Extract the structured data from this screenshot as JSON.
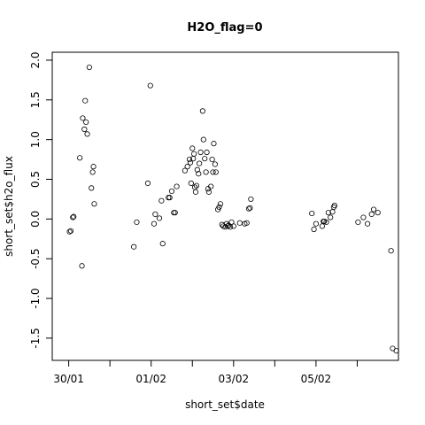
{
  "chart_data": {
    "type": "scatter",
    "title": "H2O_flag=0",
    "xlabel": "short_set$date",
    "ylabel": "short_set$h2o_flux",
    "x_ticks": [
      {
        "label": "30/01",
        "day": 30
      },
      {
        "label": "01/02",
        "day": 32
      },
      {
        "label": "03/02",
        "day": 34
      },
      {
        "label": "05/02",
        "day": 36
      }
    ],
    "x_minor_ticks": [
      31,
      33,
      35,
      37
    ],
    "xlim": [
      29.6,
      38.0
    ],
    "y_ticks": [
      -1.5,
      -1.0,
      -0.5,
      0.0,
      0.5,
      1.0,
      1.5,
      2.0
    ],
    "y_tick_labels": [
      "-1.5",
      "-1.0",
      "-0.5",
      "0.0",
      "0.5",
      "1.0",
      "1.5",
      "2.0"
    ],
    "ylim": [
      -1.78,
      2.1
    ],
    "grid": false,
    "legend": "none",
    "points": [
      {
        "x": 30.02,
        "y": -0.16
      },
      {
        "x": 30.05,
        "y": -0.15
      },
      {
        "x": 30.1,
        "y": 0.02
      },
      {
        "x": 30.12,
        "y": 0.03
      },
      {
        "x": 30.27,
        "y": 0.77
      },
      {
        "x": 30.32,
        "y": -0.59
      },
      {
        "x": 30.34,
        "y": 1.27
      },
      {
        "x": 30.38,
        "y": 1.13
      },
      {
        "x": 30.4,
        "y": 1.49
      },
      {
        "x": 30.42,
        "y": 1.22
      },
      {
        "x": 30.45,
        "y": 1.07
      },
      {
        "x": 30.5,
        "y": 1.91
      },
      {
        "x": 30.55,
        "y": 0.39
      },
      {
        "x": 30.58,
        "y": 0.59
      },
      {
        "x": 30.6,
        "y": 0.66
      },
      {
        "x": 30.62,
        "y": 0.19
      },
      {
        "x": 31.58,
        "y": -0.35
      },
      {
        "x": 31.65,
        "y": -0.04
      },
      {
        "x": 31.92,
        "y": 0.45
      },
      {
        "x": 31.98,
        "y": 1.68
      },
      {
        "x": 32.07,
        "y": -0.06
      },
      {
        "x": 32.1,
        "y": 0.06
      },
      {
        "x": 32.2,
        "y": 0.01
      },
      {
        "x": 32.25,
        "y": 0.23
      },
      {
        "x": 32.28,
        "y": -0.31
      },
      {
        "x": 32.42,
        "y": 0.27
      },
      {
        "x": 32.45,
        "y": 0.27
      },
      {
        "x": 32.5,
        "y": 0.35
      },
      {
        "x": 32.55,
        "y": 0.08
      },
      {
        "x": 32.58,
        "y": 0.08
      },
      {
        "x": 32.62,
        "y": 0.41
      },
      {
        "x": 32.82,
        "y": 0.61
      },
      {
        "x": 32.88,
        "y": 0.66
      },
      {
        "x": 32.93,
        "y": 0.75
      },
      {
        "x": 32.95,
        "y": 0.71
      },
      {
        "x": 32.97,
        "y": 0.45
      },
      {
        "x": 33.0,
        "y": 0.89
      },
      {
        "x": 33.02,
        "y": 0.76
      },
      {
        "x": 33.04,
        "y": 0.82
      },
      {
        "x": 33.06,
        "y": 0.4
      },
      {
        "x": 33.08,
        "y": 0.34
      },
      {
        "x": 33.1,
        "y": 0.42
      },
      {
        "x": 33.12,
        "y": 0.62
      },
      {
        "x": 33.15,
        "y": 0.57
      },
      {
        "x": 33.17,
        "y": 0.7
      },
      {
        "x": 33.2,
        "y": 0.84
      },
      {
        "x": 33.25,
        "y": 1.36
      },
      {
        "x": 33.27,
        "y": 1.0
      },
      {
        "x": 33.3,
        "y": 0.76
      },
      {
        "x": 33.33,
        "y": 0.59
      },
      {
        "x": 33.35,
        "y": 0.84
      },
      {
        "x": 33.38,
        "y": 0.38
      },
      {
        "x": 33.4,
        "y": 0.34
      },
      {
        "x": 33.45,
        "y": 0.41
      },
      {
        "x": 33.48,
        "y": 0.75
      },
      {
        "x": 33.5,
        "y": 0.59
      },
      {
        "x": 33.52,
        "y": 0.95
      },
      {
        "x": 33.55,
        "y": 0.69
      },
      {
        "x": 33.57,
        "y": 0.59
      },
      {
        "x": 33.62,
        "y": 0.12
      },
      {
        "x": 33.65,
        "y": 0.15
      },
      {
        "x": 33.68,
        "y": 0.19
      },
      {
        "x": 33.72,
        "y": -0.07
      },
      {
        "x": 33.75,
        "y": -0.09
      },
      {
        "x": 33.8,
        "y": -0.1
      },
      {
        "x": 33.83,
        "y": -0.06
      },
      {
        "x": 33.86,
        "y": -0.09
      },
      {
        "x": 33.88,
        "y": -0.08
      },
      {
        "x": 33.92,
        "y": -0.1
      },
      {
        "x": 33.95,
        "y": -0.04
      },
      {
        "x": 34.0,
        "y": -0.09
      },
      {
        "x": 34.15,
        "y": -0.05
      },
      {
        "x": 34.27,
        "y": -0.06
      },
      {
        "x": 34.32,
        "y": -0.05
      },
      {
        "x": 34.37,
        "y": 0.13
      },
      {
        "x": 34.4,
        "y": 0.14
      },
      {
        "x": 34.42,
        "y": 0.25
      },
      {
        "x": 35.9,
        "y": 0.07
      },
      {
        "x": 35.95,
        "y": -0.13
      },
      {
        "x": 36.0,
        "y": -0.06
      },
      {
        "x": 36.15,
        "y": -0.09
      },
      {
        "x": 36.18,
        "y": -0.03
      },
      {
        "x": 36.2,
        "y": -0.03
      },
      {
        "x": 36.25,
        "y": -0.04
      },
      {
        "x": 36.3,
        "y": 0.08
      },
      {
        "x": 36.35,
        "y": 0.02
      },
      {
        "x": 36.4,
        "y": 0.09
      },
      {
        "x": 36.43,
        "y": 0.15
      },
      {
        "x": 36.45,
        "y": 0.17
      },
      {
        "x": 37.02,
        "y": -0.04
      },
      {
        "x": 37.15,
        "y": 0.02
      },
      {
        "x": 37.25,
        "y": -0.06
      },
      {
        "x": 37.35,
        "y": 0.06
      },
      {
        "x": 37.4,
        "y": 0.12
      },
      {
        "x": 37.5,
        "y": 0.08
      },
      {
        "x": 37.82,
        "y": -0.4
      },
      {
        "x": 37.86,
        "y": -1.63
      },
      {
        "x": 37.95,
        "y": -1.66
      }
    ]
  }
}
